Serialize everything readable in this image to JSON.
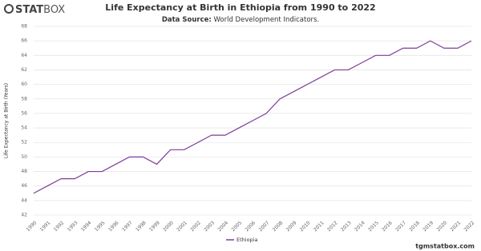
{
  "logo": {
    "bold": "STAT",
    "light": "BOX"
  },
  "footer": "tgmstatbox.com",
  "chart_data": {
    "type": "line",
    "title": "Life Expectancy at Birth in Ethiopia from 1990 to 2022",
    "source_label": "Data Source:",
    "source": "World Development Indicators.",
    "y_label": "Life Expectancy at Birth (Years)",
    "categories": [
      "1990",
      "1991",
      "1992",
      "1993",
      "1994",
      "1995",
      "1996",
      "1997",
      "1998",
      "1999",
      "2000",
      "2001",
      "2002",
      "2003",
      "2004",
      "2005",
      "2006",
      "2007",
      "2008",
      "2009",
      "2010",
      "2011",
      "2012",
      "2013",
      "2014",
      "2015",
      "2016",
      "2017",
      "2018",
      "2019",
      "2020",
      "2021",
      "2022"
    ],
    "series": [
      {
        "name": "Ethiopia",
        "color": "#7d3c98",
        "values": [
          45,
          46,
          47,
          47,
          48,
          48,
          49,
          50,
          50,
          49,
          51,
          51,
          52,
          53,
          53,
          54,
          55,
          56,
          58,
          59,
          60,
          61,
          62,
          62,
          63,
          64,
          64,
          65,
          65,
          66,
          65,
          65,
          66
        ]
      }
    ],
    "ylim": [
      42,
      68
    ],
    "yticks": [
      42,
      44,
      46,
      48,
      50,
      52,
      54,
      56,
      58,
      60,
      62,
      64,
      66,
      68
    ],
    "grid": true,
    "legend": "bottom"
  }
}
